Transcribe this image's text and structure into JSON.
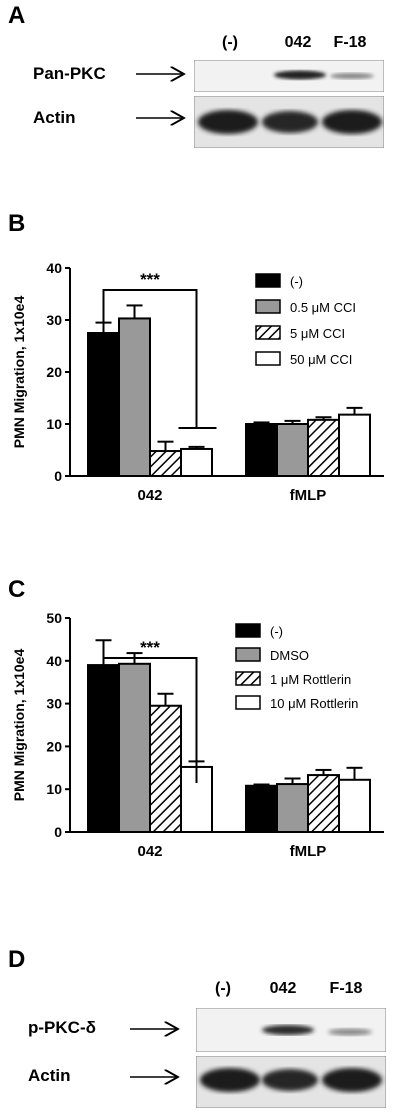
{
  "panels": {
    "A": {
      "letter": "A",
      "lanes": [
        "(-)",
        "042",
        "F-18"
      ],
      "rows": [
        "Pan-PKC",
        "Actin"
      ]
    },
    "B": {
      "letter": "B"
    },
    "C": {
      "letter": "C"
    },
    "D": {
      "letter": "D",
      "lanes": [
        "(-)",
        "042",
        "F-18"
      ],
      "rows": [
        "p-PKC-δ",
        "Actin"
      ]
    }
  },
  "chart_data": [
    {
      "panel": "B",
      "type": "bar",
      "ylabel": "PMN Migration, 1x10e4",
      "ylim": [
        0,
        40
      ],
      "yticks": [
        0,
        10,
        20,
        30,
        40
      ],
      "categories": [
        "042",
        "fMLP"
      ],
      "series": [
        {
          "name": "(-)",
          "values": [
            27.5,
            10.0
          ],
          "errors": [
            2.0,
            0.3
          ],
          "fill": "#000000"
        },
        {
          "name": "0.5 μM CCI",
          "values": [
            30.3,
            10.0
          ],
          "errors": [
            2.5,
            0.6
          ],
          "fill": "#999999"
        },
        {
          "name": "5 μM CCI",
          "values": [
            4.8,
            10.8
          ],
          "errors": [
            1.8,
            0.5
          ],
          "fill": "hatch"
        },
        {
          "name": "50 μM CCI",
          "values": [
            5.2,
            11.8
          ],
          "errors": [
            0.4,
            1.3
          ],
          "fill": "#ffffff"
        }
      ],
      "significance": "***",
      "legend": "top-right"
    },
    {
      "panel": "C",
      "type": "bar",
      "ylabel": "PMN Migration, 1x10e4",
      "ylim": [
        0,
        50
      ],
      "yticks": [
        0,
        10,
        20,
        30,
        40,
        50
      ],
      "categories": [
        "042",
        "fMLP"
      ],
      "series": [
        {
          "name": "(-)",
          "values": [
            39.0,
            10.8
          ],
          "errors": [
            5.8,
            0.3
          ],
          "fill": "#000000"
        },
        {
          "name": "DMSO",
          "values": [
            39.3,
            11.2
          ],
          "errors": [
            2.5,
            1.3
          ],
          "fill": "#999999"
        },
        {
          "name": "1 μM Rottlerin",
          "values": [
            29.5,
            13.3
          ],
          "errors": [
            2.8,
            1.2
          ],
          "fill": "hatch"
        },
        {
          "name": "10 μM Rottlerin",
          "values": [
            15.2,
            12.2
          ],
          "errors": [
            1.3,
            2.8
          ],
          "fill": "#ffffff"
        }
      ],
      "significance": "***",
      "legend": "top-right"
    }
  ]
}
